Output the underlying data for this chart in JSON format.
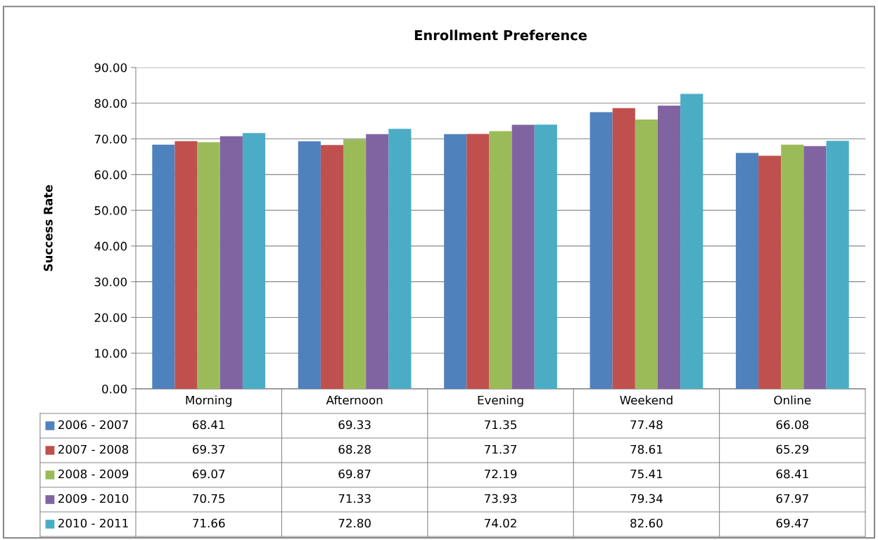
{
  "chart_data": {
    "type": "bar",
    "title": "Enrollment Preference",
    "ylabel": "Success Rate",
    "categories": [
      "Morning",
      "Afternoon",
      "Evening",
      "Weekend",
      "Online"
    ],
    "series": [
      {
        "name": "2006 - 2007",
        "color": "#4f81bd",
        "values": [
          68.41,
          69.33,
          71.35,
          77.48,
          66.08
        ],
        "value_labels": [
          "68.41",
          "69.33",
          "71.35",
          "77.48",
          "66.08"
        ]
      },
      {
        "name": "2007 - 2008",
        "color": "#c0504d",
        "values": [
          69.37,
          68.28,
          71.37,
          78.61,
          65.29
        ],
        "value_labels": [
          "69.37",
          "68.28",
          "71.37",
          "78.61",
          "65.29"
        ]
      },
      {
        "name": "2008 - 2009",
        "color": "#9bbb59",
        "values": [
          69.07,
          69.87,
          72.19,
          75.41,
          68.41
        ],
        "value_labels": [
          "69.07",
          "69.87",
          "72.19",
          "75.41",
          "68.41"
        ]
      },
      {
        "name": "2009 - 2010",
        "color": "#8064a2",
        "values": [
          70.75,
          71.33,
          73.93,
          79.34,
          67.97
        ],
        "value_labels": [
          "70.75",
          "71.33",
          "73.93",
          "79.34",
          "67.97"
        ]
      },
      {
        "name": "2010 - 2011",
        "color": "#4bacc6",
        "values": [
          71.66,
          72.8,
          74.02,
          82.6,
          69.47
        ],
        "value_labels": [
          "71.66",
          "72.80",
          "74.02",
          "82.60",
          "69.47"
        ]
      }
    ],
    "ylim": [
      0,
      90
    ],
    "yticks": [
      {
        "value": 0,
        "label": "0.00"
      },
      {
        "value": 10,
        "label": "10.00"
      },
      {
        "value": 20,
        "label": "20.00"
      },
      {
        "value": 30,
        "label": "30.00"
      },
      {
        "value": 40,
        "label": "40.00"
      },
      {
        "value": 50,
        "label": "50.00"
      },
      {
        "value": 60,
        "label": "60.00"
      },
      {
        "value": 70,
        "label": "70.00"
      },
      {
        "value": 80,
        "label": "80.00"
      },
      {
        "value": 90,
        "label": "90.00"
      }
    ],
    "grid": "y",
    "legend": "bottom"
  }
}
